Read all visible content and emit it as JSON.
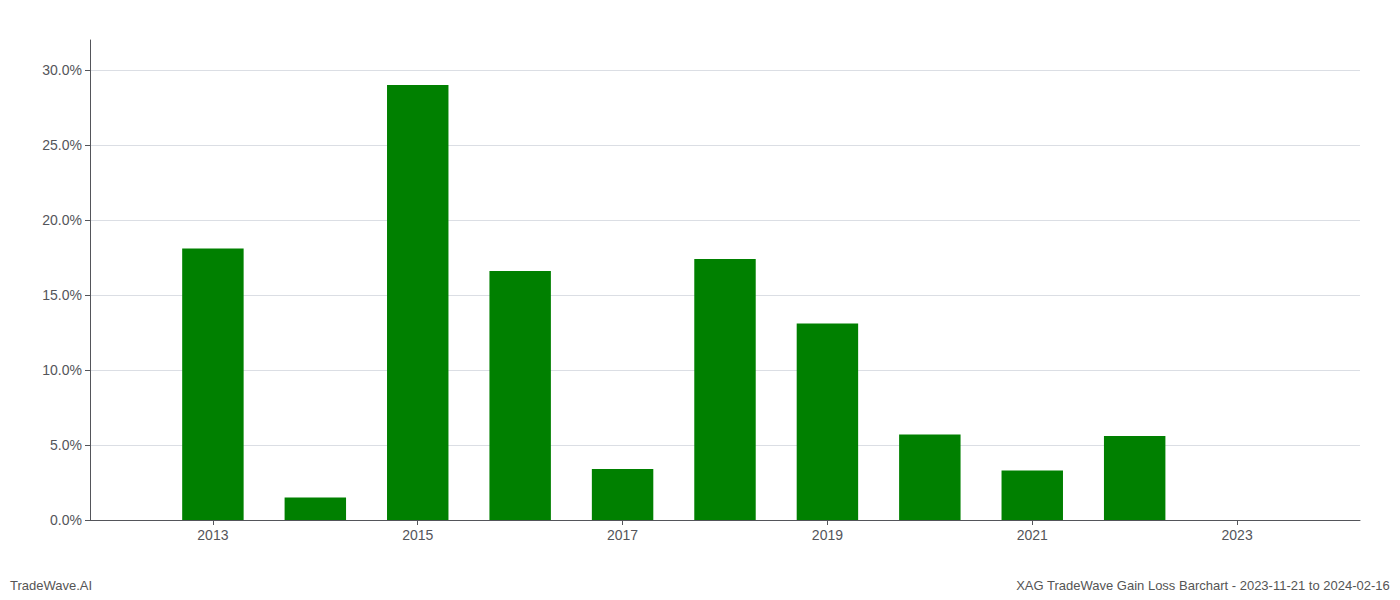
{
  "chart_data": {
    "type": "bar",
    "x": [
      2013,
      2014,
      2015,
      2016,
      2017,
      2018,
      2019,
      2020,
      2021,
      2022,
      2023
    ],
    "values": [
      0.181,
      0.015,
      0.29,
      0.166,
      0.034,
      0.174,
      0.131,
      0.057,
      0.033,
      0.056,
      0.0
    ],
    "color": "#008000",
    "xlim": [
      2011.8,
      2024.2
    ],
    "xticks": [
      2013,
      2015,
      2017,
      2019,
      2021,
      2023
    ],
    "ylim": [
      0.0,
      0.32
    ],
    "yticks": [
      {
        "value": 0.0,
        "label": "0.0%"
      },
      {
        "value": 0.05,
        "label": "5.0%"
      },
      {
        "value": 0.1,
        "label": "10.0%"
      },
      {
        "value": 0.15,
        "label": "15.0%"
      },
      {
        "value": 0.2,
        "label": "20.0%"
      },
      {
        "value": 0.25,
        "label": "25.0%"
      },
      {
        "value": 0.3,
        "label": "30.0%"
      }
    ],
    "grid": true,
    "annotations": [
      "TradeWave.AI",
      "XAG TradeWave Gain Loss Barchart - 2023-11-21 to 2024-02-16"
    ]
  }
}
